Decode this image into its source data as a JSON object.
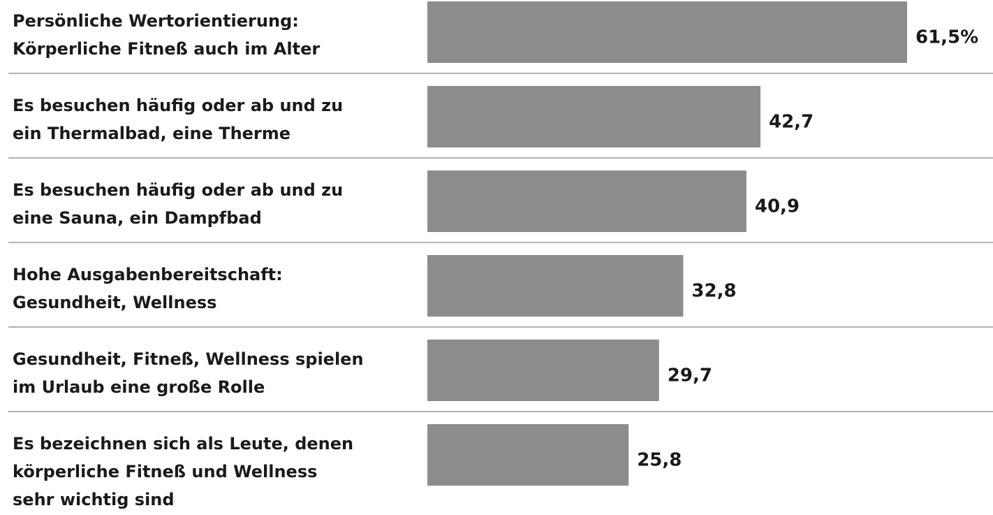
{
  "chart_data": {
    "type": "hbar",
    "categories": [
      [
        "Persönliche Wertorientierung:",
        "Körperliche Fitneß auch im Alter"
      ],
      [
        "Es besuchen häufig oder ab und zu",
        "ein Thermalbad, eine Therme"
      ],
      [
        "Es besuchen häufig oder ab und zu",
        "eine Sauna, ein Dampfbad"
      ],
      [
        "Hohe Ausgabenbereitschaft:",
        "Gesundheit, Wellness"
      ],
      [
        "Gesundheit, Fitneß, Wellness spielen",
        "im Urlaub eine große Rolle"
      ],
      [
        "Es bezeichnen sich als Leute, denen",
        "körperliche Fitneß und Wellness",
        "sehr wichtig sind"
      ]
    ],
    "values": [
      61.5,
      42.7,
      40.9,
      32.8,
      29.7,
      25.8
    ],
    "value_labels": [
      "61,5%",
      "42,7",
      "40,9",
      "32,8",
      "29,7",
      "25,8"
    ],
    "color": "#8c8c8c"
  }
}
